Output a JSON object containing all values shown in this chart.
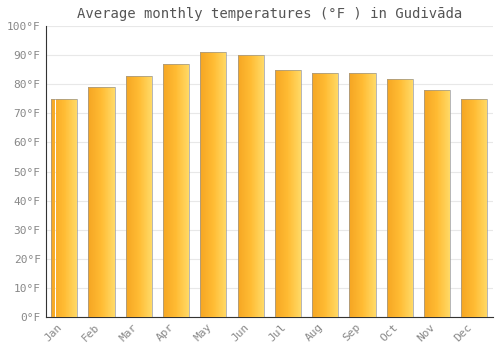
{
  "title": "Average monthly temperatures (°F ) in Gudivāda",
  "months": [
    "Jan",
    "Feb",
    "Mar",
    "Apr",
    "May",
    "Jun",
    "Jul",
    "Aug",
    "Sep",
    "Oct",
    "Nov",
    "Dec"
  ],
  "values": [
    75,
    79,
    83,
    87,
    91,
    90,
    85,
    84,
    84,
    82,
    78,
    75
  ],
  "bar_color_left": "#F5A623",
  "bar_color_right": "#FFD966",
  "bar_color_mid": "#FFBB33",
  "ylim": [
    0,
    100
  ],
  "yticks": [
    0,
    10,
    20,
    30,
    40,
    50,
    60,
    70,
    80,
    90,
    100
  ],
  "ytick_labels": [
    "0°F",
    "10°F",
    "20°F",
    "30°F",
    "40°F",
    "50°F",
    "60°F",
    "70°F",
    "80°F",
    "90°F",
    "100°F"
  ],
  "background_color": "#FFFFFF",
  "grid_color": "#E8E8E8",
  "title_fontsize": 10,
  "tick_fontsize": 8,
  "bar_width": 0.7,
  "bar_edge_color": "#999999",
  "bar_edge_width": 0.5
}
